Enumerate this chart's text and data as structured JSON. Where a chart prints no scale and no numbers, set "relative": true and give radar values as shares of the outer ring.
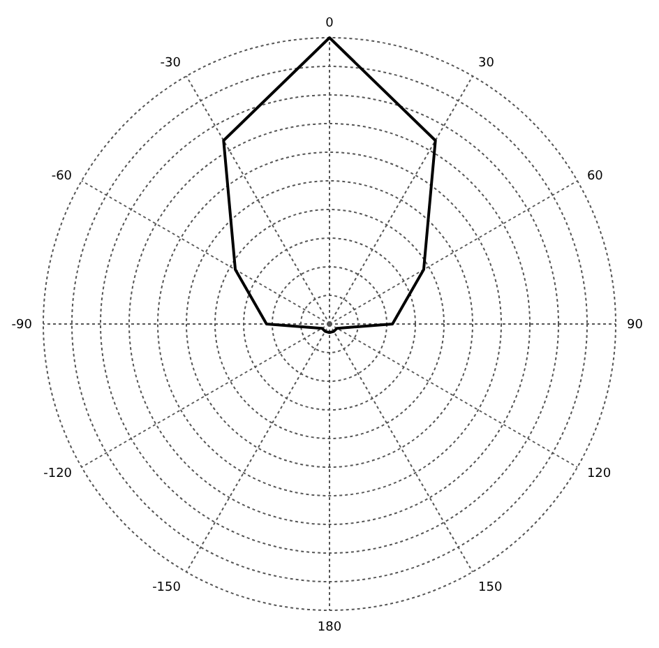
{
  "chart_data": {
    "type": "radar",
    "relative": true,
    "grid": true,
    "marker": "none",
    "line_style": "solid",
    "categories": [
      "0",
      "30",
      "60",
      "90",
      "120",
      "150",
      "180",
      "-150",
      "-120",
      "-90",
      "-60",
      "-30"
    ],
    "series": [
      {
        "color": "#000000",
        "values": [
          1,
          0.74,
          0.38,
          0.22,
          0.03,
          0.03,
          0.03,
          0.03,
          0.03,
          0.22,
          0.38,
          0.74
        ]
      }
    ]
  }
}
